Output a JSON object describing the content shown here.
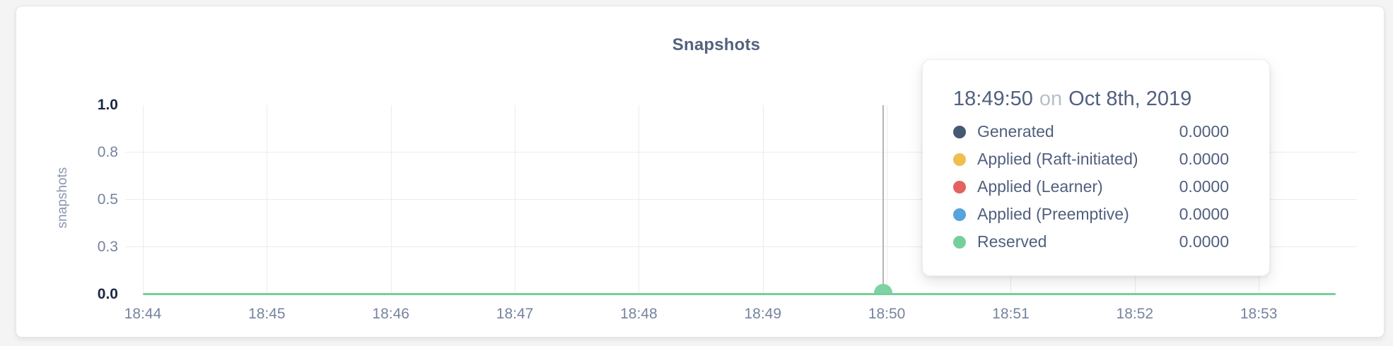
{
  "window": {
    "background": "#f4f4f5"
  },
  "chart": {
    "title": "Snapshots",
    "y_axis_label": "snapshots"
  },
  "chart_data": {
    "type": "line",
    "title": "Snapshots",
    "xlabel": "",
    "ylabel": "snapshots",
    "ylim": [
      0,
      1.0
    ],
    "grid": true,
    "x_ticks": [
      "18:44",
      "18:45",
      "18:46",
      "18:47",
      "18:48",
      "18:49",
      "18:50",
      "18:51",
      "18:52",
      "18:53"
    ],
    "y_ticks": [
      {
        "label": "0.0",
        "value": 0
      },
      {
        "label": "0.3",
        "value": 0.25
      },
      {
        "label": "0.5",
        "value": 0.5
      },
      {
        "label": "0.8",
        "value": 0.75
      },
      {
        "label": "1.0",
        "value": 1
      }
    ],
    "series": [
      {
        "name": "Generated",
        "color": "#475872",
        "values": [
          0,
          0,
          0,
          0,
          0,
          0,
          0,
          0,
          0,
          0
        ]
      },
      {
        "name": "Applied (Raft-initiated)",
        "color": "#eebf4e",
        "values": [
          0,
          0,
          0,
          0,
          0,
          0,
          0,
          0,
          0,
          0
        ]
      },
      {
        "name": "Applied (Learner)",
        "color": "#e3625f",
        "values": [
          0,
          0,
          0,
          0,
          0,
          0,
          0,
          0,
          0,
          0
        ]
      },
      {
        "name": "Applied (Preemptive)",
        "color": "#57a3dc",
        "values": [
          0,
          0,
          0,
          0,
          0,
          0,
          0,
          0,
          0,
          0
        ]
      },
      {
        "name": "Reserved",
        "color": "#75cf9c",
        "values": [
          0,
          0,
          0,
          0,
          0,
          0,
          0,
          0,
          0,
          0
        ]
      }
    ],
    "hover_point": {
      "x": "18:49:50",
      "y": 0,
      "nearest_x_tick": "18:50"
    }
  },
  "tooltip": {
    "time": "18:49:50",
    "conjunction": "on",
    "date": "Oct 8th, 2019",
    "rows": [
      {
        "label": "Generated",
        "value": "0.0000",
        "color": "#475872"
      },
      {
        "label": "Applied (Raft-initiated)",
        "value": "0.0000",
        "color": "#eebf4e"
      },
      {
        "label": "Applied (Learner)",
        "value": "0.0000",
        "color": "#e3625f"
      },
      {
        "label": "Applied (Preemptive)",
        "value": "0.0000",
        "color": "#57a3dc"
      },
      {
        "label": "Reserved",
        "value": "0.0000",
        "color": "#75cf9c"
      }
    ]
  },
  "colors": {
    "data_line": "#75cf9c",
    "hover_dot": "#7fd3a3",
    "crosshair": "#b5b5b6",
    "gridline": "#ececec",
    "tick_text": "#76839e",
    "tick_text_strong": "#1a2844",
    "title_text": "#54627e",
    "tooltip_text": "#51607e",
    "tooltip_muted": "#b9bfc7"
  }
}
